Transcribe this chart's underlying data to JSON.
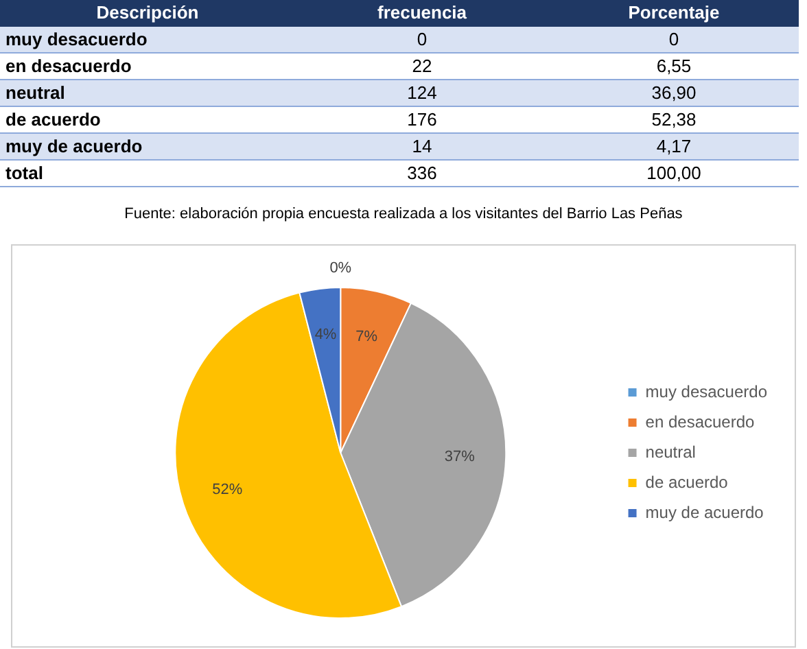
{
  "chart_data": [
    {
      "type": "heatmap",
      "ylabel": "Descripción",
      "categories": [
        "frecuencia",
        "Porcentaje"
      ],
      "y_categories": [
        "muy desacuerdo",
        "en desacuerdo",
        "neutral",
        "de acuerdo",
        "muy de acuerdo",
        "total"
      ],
      "cells": [
        [
          0,
          0
        ],
        [
          22,
          6.55
        ],
        [
          124,
          36.9
        ],
        [
          176,
          52.38
        ],
        [
          14,
          4.17
        ],
        [
          336,
          100
        ]
      ],
      "cell_labels": [
        [
          "0",
          "0"
        ],
        [
          "22",
          "6,55"
        ],
        [
          "124",
          "36,90"
        ],
        [
          "176",
          "52,38"
        ],
        [
          "14",
          "4,17"
        ],
        [
          "336",
          "100,00"
        ]
      ],
      "annotations": [
        "Fuente: elaboración propia encuesta realizada a los visitantes del Barrio Las Peñas"
      ]
    },
    {
      "type": "pie",
      "categories": [
        "muy desacuerdo",
        "en desacuerdo",
        "neutral",
        "de acuerdo",
        "muy de acuerdo"
      ],
      "values": [
        0,
        7,
        37,
        52,
        4
      ],
      "value_labels": [
        "0%",
        "7%",
        "37%",
        "52%",
        "4%"
      ],
      "colors": [
        "#5b9bd5",
        "#ed7d31",
        "#a5a5a5",
        "#ffc000",
        "#4472c4"
      ],
      "legend": "right"
    }
  ]
}
